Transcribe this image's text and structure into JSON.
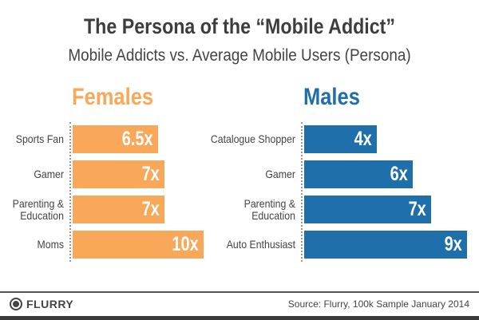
{
  "header": {
    "title": "The Persona of the “Mobile Addict”",
    "subtitle": "Mobile Addicts vs. Average Mobile Users (Persona)"
  },
  "footer": {
    "logo": "FLURRY",
    "source": "Source: Flurry, 100k Sample January 2014"
  },
  "colors": {
    "females": "#F9A85A",
    "males": "#1F6FAA"
  },
  "chart_data": [
    {
      "type": "bar",
      "orientation": "horizontal",
      "title": "Females",
      "categories": [
        "Sports Fan",
        "Gamer",
        "Parenting & Education",
        "Moms"
      ],
      "values": [
        6.5,
        7,
        7,
        10
      ],
      "labels": [
        "6.5x",
        "7x",
        "7x",
        "10x"
      ],
      "xlim": [
        0,
        10
      ]
    },
    {
      "type": "bar",
      "orientation": "horizontal",
      "title": "Males",
      "categories": [
        "Catalogue Shopper",
        "Gamer",
        "Parenting & Education",
        "Auto Enthusiast"
      ],
      "values": [
        4,
        6,
        7,
        9
      ],
      "labels": [
        "4x",
        "6x",
        "7x",
        "9x"
      ],
      "xlim": [
        0,
        9
      ]
    }
  ]
}
